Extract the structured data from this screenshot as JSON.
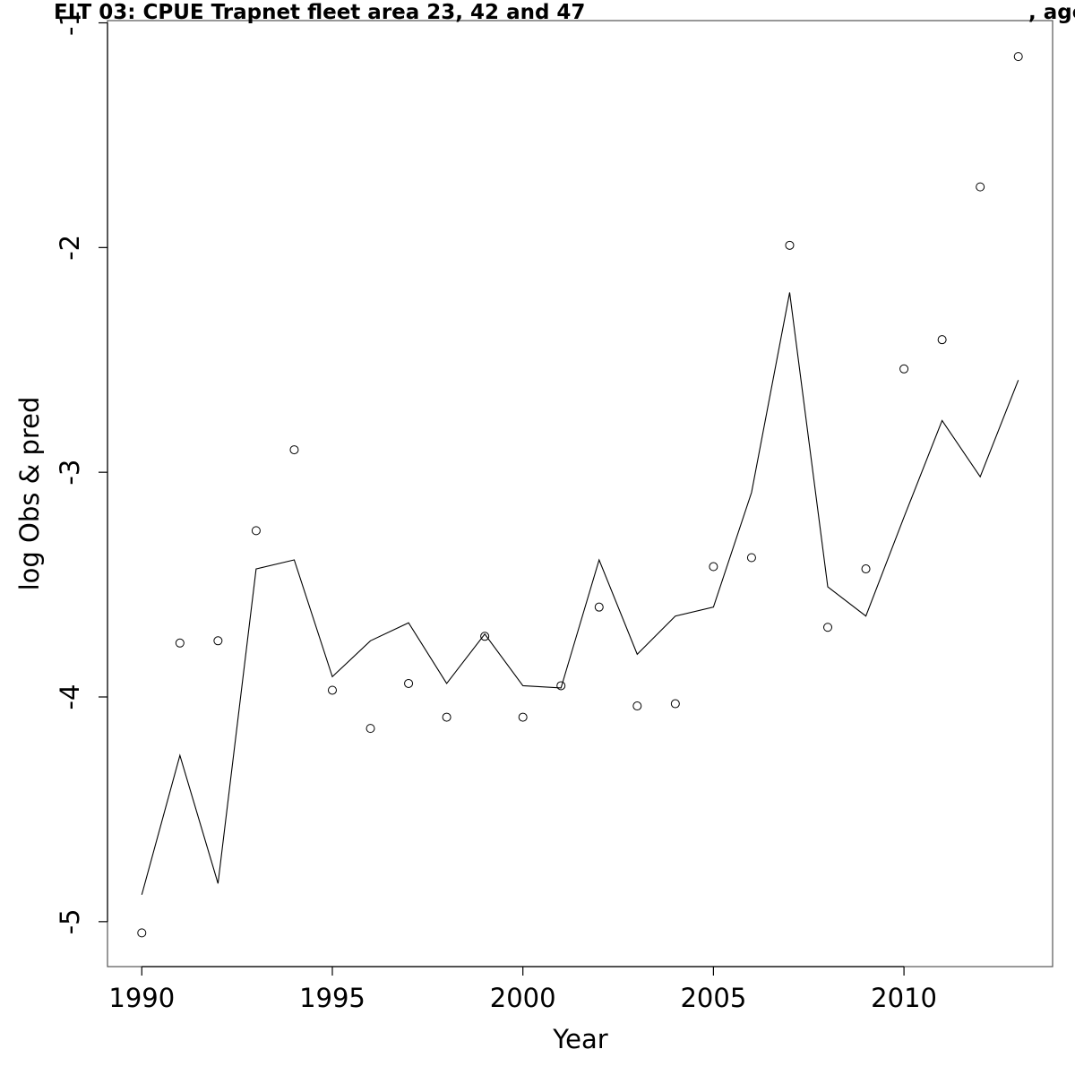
{
  "chart_data": {
    "type": "line",
    "title": "FLT 03: CPUE Trapnet fleet area 23, 42 and 47",
    "title_suffix": ", age",
    "xlabel": "Year",
    "ylabel": "log Obs & pred",
    "xlim": [
      1989.1,
      2013.9
    ],
    "ylim": [
      -5.2,
      -0.99
    ],
    "x_ticks": [
      1990,
      1995,
      2000,
      2005,
      2010
    ],
    "y_ticks": [
      -5,
      -4,
      -3,
      -2,
      -1
    ],
    "x": [
      1990,
      1991,
      1992,
      1993,
      1994,
      1995,
      1996,
      1997,
      1998,
      1999,
      2000,
      2001,
      2002,
      2003,
      2004,
      2005,
      2006,
      2007,
      2008,
      2009,
      2010,
      2011,
      2012,
      2013
    ],
    "series": [
      {
        "name": "Obs",
        "style": "points",
        "values": [
          -5.05,
          -3.76,
          -3.75,
          -3.26,
          -2.9,
          -3.97,
          -4.14,
          -3.94,
          -4.09,
          -3.73,
          -4.09,
          -3.95,
          -3.6,
          -4.04,
          -4.03,
          -3.42,
          -3.38,
          -1.99,
          -3.69,
          -3.43,
          -2.54,
          -2.41,
          -1.73,
          -1.15
        ]
      },
      {
        "name": "pred",
        "style": "line",
        "values": [
          -4.88,
          -4.26,
          -4.83,
          -3.43,
          -3.39,
          -3.91,
          -3.75,
          -3.67,
          -3.94,
          -3.72,
          -3.95,
          -3.96,
          -3.39,
          -3.81,
          -3.64,
          -3.6,
          -3.09,
          -2.2,
          -3.51,
          -3.64,
          -3.2,
          -2.77,
          -3.02,
          -2.59
        ]
      }
    ],
    "grid": false,
    "legend": "none",
    "colors": {
      "line": "#000000",
      "points": "#000000",
      "frame": "#555555"
    }
  }
}
